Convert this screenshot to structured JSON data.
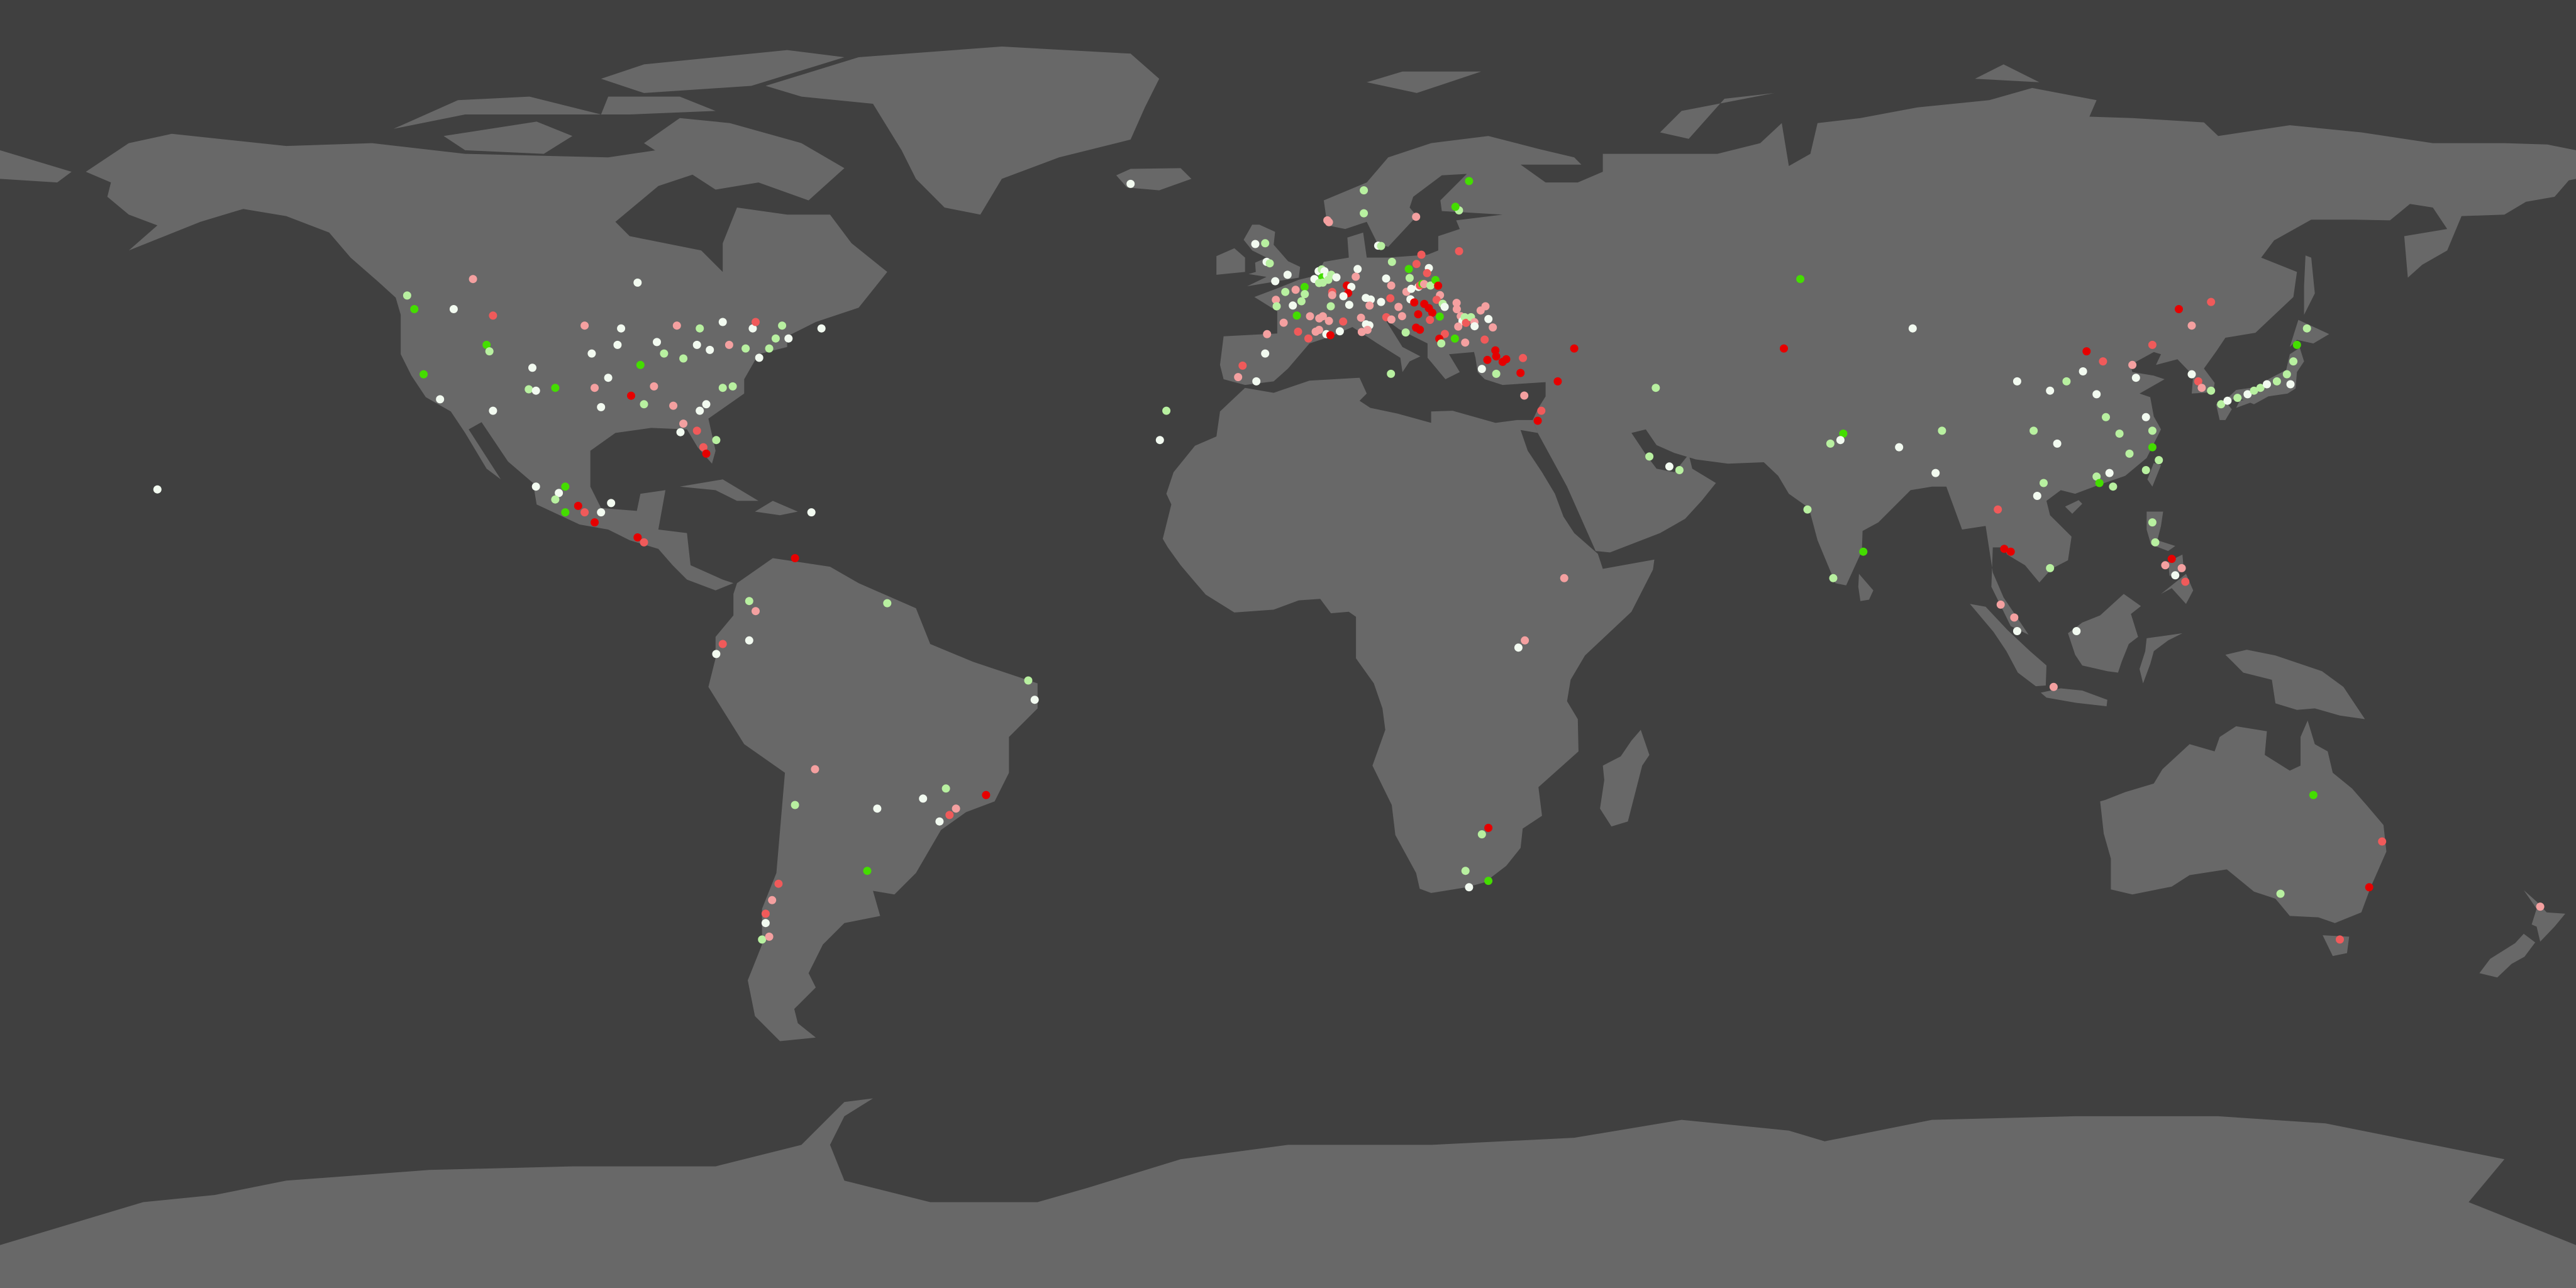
{
  "map": {
    "projection": "equirectangular",
    "colors": {
      "ocean": "#404040",
      "land": "#686868",
      "levels": {
        "r": "#e60000",
        "lr": "#f05a5a",
        "p": "#f4a0a0",
        "w": "#f2faf0",
        "lg": "#b8f0a0",
        "g": "#44dd00"
      }
    },
    "markers": [
      [
        -123.1,
        48.7,
        "lg"
      ],
      [
        -122.1,
        46.8,
        "g"
      ],
      [
        -116.6,
        46.8,
        "w"
      ],
      [
        -113.9,
        51.0,
        "p"
      ],
      [
        -111.1,
        45.9,
        "lr"
      ],
      [
        -112.0,
        41.8,
        "g"
      ],
      [
        -111.6,
        40.9,
        "lg"
      ],
      [
        -120.8,
        37.7,
        "g"
      ],
      [
        -118.5,
        34.2,
        "w"
      ],
      [
        -111.1,
        32.6,
        "w"
      ],
      [
        -106.1,
        35.6,
        "lg"
      ],
      [
        -105.1,
        35.4,
        "w"
      ],
      [
        -105.6,
        38.6,
        "w"
      ],
      [
        -102.4,
        35.8,
        "g"
      ],
      [
        -98.3,
        44.5,
        "p"
      ],
      [
        -97.3,
        40.6,
        "w"
      ],
      [
        -96.9,
        35.8,
        "p"
      ],
      [
        -96.0,
        33.1,
        "w"
      ],
      [
        -95.0,
        37.2,
        "w"
      ],
      [
        -93.7,
        41.8,
        "w"
      ],
      [
        -93.2,
        44.1,
        "w"
      ],
      [
        -91.8,
        34.7,
        "r"
      ],
      [
        -90.9,
        50.5,
        "w"
      ],
      [
        -90.5,
        39.0,
        "g"
      ],
      [
        -90.0,
        33.5,
        "lg"
      ],
      [
        -88.6,
        36.0,
        "p"
      ],
      [
        -88.2,
        42.2,
        "w"
      ],
      [
        -87.2,
        40.6,
        "lg"
      ],
      [
        -85.4,
        44.5,
        "p"
      ],
      [
        -85.9,
        33.3,
        "p"
      ],
      [
        -84.5,
        39.9,
        "lg"
      ],
      [
        -82.6,
        41.8,
        "w"
      ],
      [
        -82.2,
        44.1,
        "lg"
      ],
      [
        -81.3,
        33.5,
        "w"
      ],
      [
        -80.8,
        41.1,
        "w"
      ],
      [
        -79.0,
        45.0,
        "w"
      ],
      [
        -79.0,
        35.8,
        "lg"
      ],
      [
        -77.6,
        36.0,
        "lg"
      ],
      [
        -78.1,
        41.8,
        "p"
      ],
      [
        -75.8,
        41.3,
        "lg"
      ],
      [
        -74.8,
        44.1,
        "w"
      ],
      [
        -74.4,
        45.0,
        "lr"
      ],
      [
        -73.9,
        40.0,
        "w"
      ],
      [
        -72.5,
        41.3,
        "lg"
      ],
      [
        -71.6,
        42.7,
        "lg"
      ],
      [
        -70.7,
        44.5,
        "lg"
      ],
      [
        -69.8,
        42.7,
        "w"
      ],
      [
        -65.2,
        44.1,
        "w"
      ],
      [
        -84.5,
        30.8,
        "p"
      ],
      [
        -82.6,
        29.8,
        "lr"
      ],
      [
        -81.7,
        27.5,
        "lr"
      ],
      [
        -81.3,
        26.6,
        "r"
      ],
      [
        -79.9,
        28.5,
        "lg"
      ],
      [
        -82.2,
        32.6,
        "w"
      ],
      [
        -84.9,
        29.6,
        "w"
      ],
      [
        -158.0,
        21.6,
        "w"
      ],
      [
        -105.1,
        22.0,
        "w"
      ],
      [
        -101.9,
        21.1,
        "w"
      ],
      [
        -101.0,
        22.0,
        "g"
      ],
      [
        -102.4,
        20.2,
        "lg"
      ],
      [
        -99.2,
        19.3,
        "r"
      ],
      [
        -98.3,
        18.4,
        "lr"
      ],
      [
        -101.0,
        18.4,
        "g"
      ],
      [
        -96.9,
        17.0,
        "r"
      ],
      [
        -96.0,
        18.4,
        "w"
      ],
      [
        -94.6,
        19.7,
        "w"
      ],
      [
        -90.9,
        14.9,
        "r"
      ],
      [
        -90.0,
        14.2,
        "lr"
      ],
      [
        -66.6,
        18.4,
        "w"
      ],
      [
        -68.9,
        12.0,
        "r"
      ],
      [
        -75.3,
        6.0,
        "lg"
      ],
      [
        -74.4,
        4.6,
        "p"
      ],
      [
        -79.0,
        0.0,
        "lr"
      ],
      [
        -79.9,
        -1.4,
        "w"
      ],
      [
        -75.3,
        0.5,
        "w"
      ],
      [
        -56.0,
        5.7,
        "lg"
      ],
      [
        -36.3,
        -5.1,
        "lg"
      ],
      [
        -35.4,
        -7.8,
        "w"
      ],
      [
        -42.2,
        -21.1,
        "r"
      ],
      [
        -46.4,
        -23.0,
        "p"
      ],
      [
        -47.3,
        -23.9,
        "lr"
      ],
      [
        -48.7,
        -24.8,
        "w"
      ],
      [
        -47.8,
        -20.2,
        "lg"
      ],
      [
        -51.0,
        -21.6,
        "w"
      ],
      [
        -57.4,
        -23.0,
        "w"
      ],
      [
        -66.1,
        -17.5,
        "p"
      ],
      [
        -68.9,
        -22.5,
        "lg"
      ],
      [
        -58.8,
        -31.7,
        "g"
      ],
      [
        -71.2,
        -33.5,
        "lr"
      ],
      [
        -72.1,
        -35.8,
        "p"
      ],
      [
        -73.0,
        -37.7,
        "lr"
      ],
      [
        -73.0,
        -39.0,
        "w"
      ],
      [
        -73.5,
        -41.3,
        "lg"
      ],
      [
        -72.5,
        -40.9,
        "p"
      ],
      [
        -17.0,
        32.6,
        "lg"
      ],
      [
        -17.9,
        28.5,
        "w"
      ],
      [
        38.6,
        9.2,
        "p"
      ],
      [
        33.1,
        0.5,
        "p"
      ],
      [
        32.2,
        -0.5,
        "w"
      ],
      [
        28.0,
        -25.7,
        "r"
      ],
      [
        27.1,
        -26.6,
        "lg"
      ],
      [
        24.8,
        -31.7,
        "lg"
      ],
      [
        28.0,
        -33.1,
        "g"
      ],
      [
        25.3,
        -34.0,
        "w"
      ],
      [
        -22.0,
        64.3,
        "w"
      ],
      [
        5.5,
        59.2,
        "p"
      ],
      [
        10.6,
        63.4,
        "lg"
      ],
      [
        10.6,
        60.2,
        "lg"
      ],
      [
        17.9,
        59.7,
        "p"
      ],
      [
        23.9,
        60.6,
        "lg"
      ],
      [
        25.3,
        64.7,
        "g"
      ],
      [
        23.4,
        61.1,
        "g"
      ],
      [
        -4.57,
        55.9,
        "w"
      ],
      [
        -3.19,
        56.0,
        "lg"
      ],
      [
        -2.99,
        53.4,
        "w"
      ],
      [
        -2.55,
        53.2,
        "lg"
      ],
      [
        -0.06,
        51.6,
        "w"
      ],
      [
        -1.78,
        50.7,
        "w"
      ],
      [
        -0.38,
        49.2,
        "lg"
      ],
      [
        1.06,
        49.5,
        "p"
      ],
      [
        2.32,
        49.9,
        "g"
      ],
      [
        2.35,
        48.9,
        "lg"
      ],
      [
        1.88,
        47.9,
        "lg"
      ],
      [
        -1.7,
        48.1,
        "p"
      ],
      [
        -1.58,
        47.2,
        "lg"
      ],
      [
        0.68,
        47.3,
        "w"
      ],
      [
        1.23,
        45.9,
        "g"
      ],
      [
        -0.61,
        44.9,
        "p"
      ],
      [
        -2.93,
        43.3,
        "p"
      ],
      [
        -3.19,
        40.6,
        "w"
      ],
      [
        -6.35,
        38.9,
        "lr"
      ],
      [
        -6.97,
        37.3,
        "p"
      ],
      [
        -4.42,
        36.7,
        "w"
      ],
      [
        1.41,
        43.65,
        "lr"
      ],
      [
        2.85,
        42.7,
        "lr"
      ],
      [
        3.87,
        43.65,
        "p"
      ],
      [
        4.34,
        43.9,
        "p"
      ],
      [
        5.36,
        43.3,
        "w"
      ],
      [
        5.92,
        43.15,
        "r"
      ],
      [
        7.24,
        43.7,
        "w"
      ],
      [
        3.08,
        45.8,
        "p"
      ],
      [
        4.37,
        45.5,
        "p"
      ],
      [
        4.87,
        45.8,
        "p"
      ],
      [
        5.72,
        45.15,
        "p"
      ],
      [
        7.71,
        45.06,
        "lr"
      ],
      [
        5.98,
        47.2,
        "lg"
      ],
      [
        6.18,
        49.2,
        "lr"
      ],
      [
        6.18,
        48.75,
        "p"
      ],
      [
        4.28,
        52.1,
        "w"
      ],
      [
        4.72,
        52.35,
        "lg"
      ],
      [
        5.1,
        52.1,
        "w"
      ],
      [
        4.81,
        51.24,
        "g"
      ],
      [
        5.45,
        51.5,
        "w"
      ],
      [
        6.04,
        51.6,
        "lg"
      ],
      [
        6.77,
        51.24,
        "w"
      ],
      [
        3.69,
        51.0,
        "w"
      ],
      [
        4.34,
        50.45,
        "lg"
      ],
      [
        4.87,
        50.5,
        "lg"
      ],
      [
        5.63,
        50.9,
        "lg"
      ],
      [
        8.23,
        50.1,
        "r"
      ],
      [
        8.85,
        49.9,
        "w"
      ],
      [
        8.41,
        49.04,
        "r"
      ],
      [
        7.74,
        48.6,
        "w"
      ],
      [
        8.56,
        47.4,
        "w"
      ],
      [
        9.73,
        52.4,
        "w"
      ],
      [
        9.47,
        51.33,
        "p"
      ],
      [
        10.2,
        45.6,
        "p"
      ],
      [
        10.9,
        44.68,
        "w"
      ],
      [
        11.37,
        44.53,
        "w"
      ],
      [
        11.11,
        43.9,
        "p"
      ],
      [
        10.31,
        43.6,
        "p"
      ],
      [
        10.87,
        48.37,
        "w"
      ],
      [
        11.57,
        48.14,
        "w"
      ],
      [
        11.4,
        47.29,
        "p"
      ],
      [
        13.01,
        47.8,
        "w"
      ],
      [
        13.71,
        51.07,
        "w"
      ],
      [
        14.42,
        50.1,
        "p"
      ],
      [
        14.3,
        48.31,
        "lr"
      ],
      [
        13.74,
        45.67,
        "lr"
      ],
      [
        14.45,
        45.35,
        "p"
      ],
      [
        15.44,
        47.11,
        "p"
      ],
      [
        15.94,
        45.82,
        "p"
      ],
      [
        16.44,
        43.54,
        "lg"
      ],
      [
        14.53,
        53.4,
        "lg"
      ],
      [
        12.6,
        55.67,
        "w"
      ],
      [
        13.01,
        55.63,
        "lg"
      ],
      [
        5.72,
        58.95,
        "p"
      ],
      [
        16.88,
        52.41,
        "g"
      ],
      [
        17.0,
        51.15,
        "lg"
      ],
      [
        16.55,
        49.22,
        "p"
      ],
      [
        17.23,
        49.63,
        "w"
      ],
      [
        17.11,
        48.17,
        "w"
      ],
      [
        17.64,
        47.73,
        "r"
      ],
      [
        18.23,
        49.9,
        "w"
      ],
      [
        18.43,
        50.1,
        "lr"
      ],
      [
        18.78,
        50.33,
        "g"
      ],
      [
        19.02,
        50.3,
        "p"
      ],
      [
        18.64,
        54.4,
        "lr"
      ],
      [
        17.96,
        53.1,
        "lr"
      ],
      [
        19.69,
        52.53,
        "w"
      ],
      [
        19.43,
        51.83,
        "lr"
      ],
      [
        19.92,
        50.1,
        "lg"
      ],
      [
        20.6,
        50.86,
        "g"
      ],
      [
        20.98,
        50.07,
        "r"
      ],
      [
        21.24,
        48.75,
        "p"
      ],
      [
        20.77,
        48.1,
        "lr"
      ],
      [
        19.05,
        47.52,
        "r"
      ],
      [
        19.69,
        46.93,
        "r"
      ],
      [
        20.16,
        46.29,
        "r"
      ],
      [
        18.19,
        46.08,
        "r"
      ],
      [
        19.84,
        45.3,
        "lr"
      ],
      [
        17.9,
        44.21,
        "r"
      ],
      [
        18.43,
        43.92,
        "r"
      ],
      [
        21.62,
        47.55,
        "lg"
      ],
      [
        21.89,
        47.11,
        "w"
      ],
      [
        21.21,
        45.76,
        "g"
      ],
      [
        23.56,
        47.67,
        "p"
      ],
      [
        23.59,
        46.79,
        "p"
      ],
      [
        24.14,
        45.82,
        "p"
      ],
      [
        24.38,
        45.12,
        "w"
      ],
      [
        24.7,
        45.67,
        "lg"
      ],
      [
        24.87,
        44.88,
        "lr"
      ],
      [
        25.58,
        45.67,
        "lg"
      ],
      [
        26.05,
        44.97,
        "p"
      ],
      [
        26.08,
        44.41,
        "w"
      ],
      [
        23.79,
        44.36,
        "p"
      ],
      [
        26.92,
        46.61,
        "p"
      ],
      [
        27.6,
        47.2,
        "p"
      ],
      [
        28.01,
        45.41,
        "w"
      ],
      [
        28.63,
        44.24,
        "p"
      ],
      [
        27.48,
        42.54,
        "lr"
      ],
      [
        24.76,
        42.13,
        "p"
      ],
      [
        23.32,
        42.68,
        "g"
      ],
      [
        21.92,
        43.33,
        "lr"
      ],
      [
        21.15,
        42.66,
        "r"
      ],
      [
        21.42,
        42.01,
        "lg"
      ],
      [
        23.91,
        54.9,
        "lr"
      ],
      [
        28.98,
        41.04,
        "r"
      ],
      [
        29.1,
        40.2,
        "r"
      ],
      [
        27.86,
        39.7,
        "r"
      ],
      [
        30.0,
        39.43,
        "r"
      ],
      [
        30.5,
        39.8,
        "r"
      ],
      [
        32.84,
        39.96,
        "lr"
      ],
      [
        32.49,
        37.88,
        "r"
      ],
      [
        29.1,
        37.76,
        "lg"
      ],
      [
        27.1,
        38.44,
        "w"
      ],
      [
        33.02,
        34.72,
        "p"
      ],
      [
        14.39,
        37.76,
        "lg"
      ],
      [
        71.6,
        51.0,
        "g"
      ],
      [
        87.3,
        44.1,
        "w"
      ],
      [
        69.3,
        41.3,
        "r"
      ],
      [
        51.4,
        35.8,
        "lg"
      ],
      [
        34.9,
        31.2,
        "r"
      ],
      [
        35.4,
        32.6,
        "lr"
      ],
      [
        50.5,
        26.2,
        "lg"
      ],
      [
        53.3,
        24.8,
        "w"
      ],
      [
        54.7,
        24.3,
        "lg"
      ],
      [
        37.7,
        36.7,
        "r"
      ],
      [
        40.0,
        41.3,
        "r"
      ],
      [
        77.6,
        29.4,
        "g"
      ],
      [
        75.8,
        28.0,
        "lg"
      ],
      [
        77.2,
        28.5,
        "w"
      ],
      [
        91.4,
        29.8,
        "lg"
      ],
      [
        90.5,
        23.9,
        "w"
      ],
      [
        72.6,
        18.8,
        "lg"
      ],
      [
        76.2,
        9.2,
        "lg"
      ],
      [
        80.4,
        12.9,
        "g"
      ],
      [
        85.4,
        27.5,
        "w"
      ],
      [
        99.2,
        18.8,
        "lr"
      ],
      [
        100.1,
        13.3,
        "r"
      ],
      [
        101.0,
        12.9,
        "r"
      ],
      [
        99.6,
        5.5,
        "p"
      ],
      [
        101.5,
        3.7,
        "p"
      ],
      [
        101.9,
        1.8,
        "w"
      ],
      [
        107.0,
        -6.0,
        "p"
      ],
      [
        106.5,
        10.6,
        "lg"
      ],
      [
        110.2,
        1.8,
        "w"
      ],
      [
        105.6,
        22.5,
        "lg"
      ],
      [
        104.7,
        20.7,
        "w"
      ],
      [
        111.6,
        40.9,
        "r"
      ],
      [
        113.9,
        39.5,
        "lr"
      ],
      [
        118.0,
        39.0,
        "p"
      ],
      [
        120.8,
        41.8,
        "lr"
      ],
      [
        124.5,
        46.8,
        "r"
      ],
      [
        129.0,
        47.8,
        "lr"
      ],
      [
        126.3,
        44.5,
        "p"
      ],
      [
        101.9,
        36.7,
        "w"
      ],
      [
        108.8,
        36.7,
        "lg"
      ],
      [
        113.0,
        34.9,
        "w"
      ],
      [
        114.3,
        31.7,
        "lg"
      ],
      [
        104.2,
        29.8,
        "lg"
      ],
      [
        107.5,
        28.0,
        "w"
      ],
      [
        116.2,
        29.4,
        "lg"
      ],
      [
        117.6,
        26.6,
        "lg"
      ],
      [
        119.9,
        31.7,
        "w"
      ],
      [
        120.8,
        29.8,
        "lg"
      ],
      [
        118.5,
        37.2,
        "w"
      ],
      [
        115.3,
        22.0,
        "lg"
      ],
      [
        113.0,
        23.4,
        "lg"
      ],
      [
        119.9,
        24.3,
        "lg"
      ],
      [
        114.8,
        23.9,
        "w"
      ],
      [
        111.1,
        38.1,
        "w"
      ],
      [
        106.5,
        35.4,
        "w"
      ],
      [
        113.4,
        22.5,
        "g"
      ],
      [
        121.7,
        25.7,
        "lg"
      ],
      [
        120.8,
        27.5,
        "g"
      ],
      [
        126.3,
        37.7,
        "w"
      ],
      [
        127.2,
        36.7,
        "lr"
      ],
      [
        127.7,
        35.8,
        "p"
      ],
      [
        129.0,
        35.4,
        "lg"
      ],
      [
        130.4,
        33.5,
        "lg"
      ],
      [
        131.3,
        34.0,
        "w"
      ],
      [
        132.7,
        34.4,
        "lg"
      ],
      [
        134.1,
        34.9,
        "w"
      ],
      [
        135.0,
        35.4,
        "lg"
      ],
      [
        135.9,
        35.8,
        "lg"
      ],
      [
        136.8,
        36.3,
        "w"
      ],
      [
        138.2,
        36.7,
        "lg"
      ],
      [
        139.6,
        37.7,
        "lg"
      ],
      [
        140.1,
        36.3,
        "w"
      ],
      [
        140.5,
        39.5,
        "lg"
      ],
      [
        141.0,
        41.8,
        "g"
      ],
      [
        142.4,
        44.1,
        "lg"
      ],
      [
        120.8,
        17.0,
        "lg"
      ],
      [
        121.2,
        14.2,
        "lg"
      ],
      [
        122.6,
        11.0,
        "p"
      ],
      [
        124.0,
        9.6,
        "w"
      ],
      [
        125.4,
        8.7,
        "lr"
      ],
      [
        124.9,
        10.6,
        "p"
      ],
      [
        123.5,
        11.9,
        "r"
      ],
      [
        143.3,
        -21.1,
        "g"
      ],
      [
        152.9,
        -27.6,
        "lr"
      ],
      [
        151.1,
        -34.0,
        "r"
      ],
      [
        147.0,
        -41.3,
        "lr"
      ],
      [
        138.7,
        -34.9,
        "lg"
      ],
      [
        175.0,
        -36.7,
        "p"
      ]
    ]
  }
}
